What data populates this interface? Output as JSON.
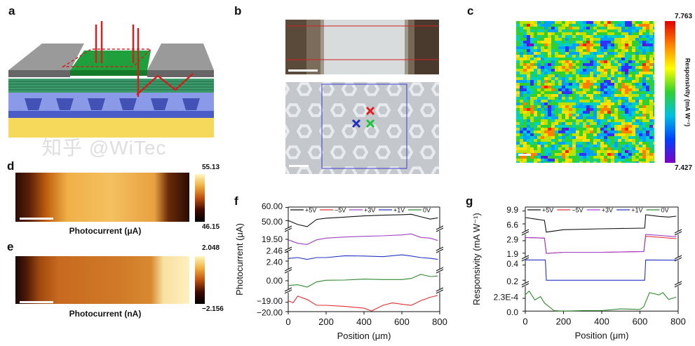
{
  "panels": {
    "a": {
      "label": "a"
    },
    "b": {
      "label": "b"
    },
    "c": {
      "label": "c",
      "colorbar": {
        "max": "7.763",
        "min": "7.427",
        "title": "Responsivity (mA W⁻¹)"
      }
    },
    "d": {
      "label": "d",
      "colorbar": {
        "max": "55.13",
        "min": "46.15"
      },
      "caption": "Photocurrent (μA)"
    },
    "e": {
      "label": "e",
      "colorbar": {
        "max": "2.048",
        "min": "−2.156"
      },
      "caption": "Photocurrent (nA)"
    },
    "f": {
      "label": "f"
    },
    "g": {
      "label": "g"
    }
  },
  "colors": {
    "+5V": "#111111",
    "−5V": "#e03030",
    "+3V": "#a040c8",
    "+1V": "#2434c0",
    "0V": "#2f8a2f"
  },
  "watermark": "知乎 @WiTec",
  "chart_data": [
    {
      "panel": "f",
      "type": "line",
      "xlabel": "Position (μm)",
      "ylabel": "Photocurrent (μA)",
      "xlim": [
        0,
        800
      ],
      "x_ticks": [
        "0",
        "200",
        "400",
        "600",
        "800"
      ],
      "y_axis": "broken",
      "y_segments": [
        {
          "tick_labels": [
            "60.00",
            "50.00"
          ],
          "ticks": [
            60,
            50
          ],
          "series": "+5V"
        },
        {
          "tick_labels": [
            "19.50"
          ],
          "ticks": [
            19.5
          ],
          "series": "+3V"
        },
        {
          "tick_labels": [
            "2.46",
            "2.40"
          ],
          "ticks": [
            2.46,
            2.4
          ],
          "series": "+1V"
        },
        {
          "tick_labels": [
            "0.00"
          ],
          "ticks": [
            0
          ],
          "series": "0V"
        },
        {
          "tick_labels": [
            "−19.00",
            "−20.00"
          ],
          "ticks": [
            -19,
            -20
          ],
          "series": "−5V"
        }
      ],
      "legend": "top",
      "series": [
        {
          "name": "+5V",
          "x": [
            0,
            50,
            100,
            150,
            200,
            300,
            400,
            500,
            600,
            650,
            700,
            750,
            790
          ],
          "y": [
            50.0,
            47.0,
            45.4,
            50.9,
            51.8,
            52.7,
            53.6,
            54.1,
            54.5,
            54.8,
            52.9,
            51.1,
            52.1
          ]
        },
        {
          "name": "−5V",
          "x": [
            0,
            25,
            50,
            100,
            150,
            200,
            300,
            400,
            440,
            500,
            550,
            600,
            650,
            700,
            750,
            790
          ],
          "y": [
            -18.83,
            -19.07,
            -18.34,
            -18.71,
            -19.32,
            -19.32,
            -19.44,
            -19.63,
            -19.93,
            -19.32,
            -19.07,
            -19.2,
            -19.32,
            -18.83,
            -18.46,
            -18.27
          ]
        },
        {
          "name": "+3V",
          "x": [
            0,
            50,
            100,
            150,
            200,
            300,
            400,
            500,
            600,
            650,
            700,
            750,
            790
          ],
          "y": [
            19.49,
            19.415,
            19.39,
            19.49,
            19.525,
            19.55,
            19.565,
            19.575,
            19.595,
            19.615,
            19.54,
            19.525,
            19.475
          ]
        },
        {
          "name": "+1V",
          "x": [
            0,
            50,
            100,
            150,
            200,
            300,
            400,
            500,
            600,
            650,
            700,
            750,
            790
          ],
          "y": [
            2.417,
            2.423,
            2.411,
            2.423,
            2.423,
            2.435,
            2.433,
            2.429,
            2.441,
            2.433,
            2.423,
            2.418,
            2.411
          ]
        },
        {
          "name": "0V",
          "x": [
            0,
            50,
            100,
            150,
            200,
            300,
            400,
            500,
            600,
            650,
            700,
            750,
            790
          ],
          "y": [
            -0.4,
            -0.34,
            -0.54,
            -0.1,
            0.04,
            0.06,
            0.14,
            0.1,
            0.1,
            0.2,
            0.54,
            0.36,
            0.4
          ]
        }
      ]
    },
    {
      "panel": "g",
      "type": "line",
      "xlabel": "Position (μm)",
      "ylabel": "Responsivity (mA W⁻¹)",
      "xlim": [
        0,
        800
      ],
      "x_ticks": [
        "0",
        "200",
        "400",
        "600",
        "800"
      ],
      "y_axis": "broken",
      "y_segments": [
        {
          "tick_labels": [
            "9.9",
            "6.6"
          ],
          "ticks": [
            9.9,
            6.6
          ],
          "series": "+5V"
        },
        {
          "tick_labels": [
            "2.9",
            "1.9"
          ],
          "ticks": [
            2.9,
            1.9
          ],
          "series": "+3V,−5V"
        },
        {
          "tick_labels": [
            "0.4",
            "0.2"
          ],
          "ticks": [
            0.4,
            0.2
          ],
          "series": "+1V"
        },
        {
          "tick_labels": [
            "2.3E-4",
            "0.0"
          ],
          "ticks": [
            0.00023,
            0
          ],
          "series": "0V"
        }
      ],
      "legend": "top",
      "series": [
        {
          "name": "+5V",
          "x": [
            0,
            100,
            110,
            200,
            400,
            625,
            630,
            700,
            750,
            790
          ],
          "y": [
            8.22,
            7.5,
            4.5,
            5.1,
            5.34,
            5.52,
            8.94,
            8.52,
            8.34,
            8.58
          ]
        },
        {
          "name": "−5V",
          "x": [
            0,
            100,
            110,
            200,
            400,
            620,
            630,
            790
          ],
          "y": [
            3.16,
            3.11,
            1.88,
            1.97,
            1.97,
            2.03,
            3.26,
            3.07
          ]
        },
        {
          "name": "+3V",
          "x": [
            0,
            100,
            110,
            200,
            400,
            620,
            630,
            790
          ],
          "y": [
            3.16,
            3.11,
            1.88,
            1.97,
            1.97,
            2.03,
            3.41,
            3.22
          ]
        },
        {
          "name": "+1V",
          "x": [
            0,
            105,
            110,
            625,
            630,
            790
          ],
          "y": [
            0.468,
            0.468,
            0.2,
            0.2,
            0.468,
            0.465
          ]
        },
        {
          "name": "0V",
          "x": [
            0,
            20,
            50,
            80,
            100,
            150,
            200,
            300,
            400,
            500,
            600,
            620,
            650,
            700,
            720,
            750,
            790
          ],
          "y": [
            0.000293,
            0.00036,
            0.0002,
            0.00026,
            0.000146,
            1e-05,
            0,
            1e-05,
            1e-05,
            4e-05,
            3e-05,
            8e-05,
            0.00033,
            0.00029,
            0.00033,
            0.00021,
            0.00025
          ]
        }
      ]
    }
  ]
}
